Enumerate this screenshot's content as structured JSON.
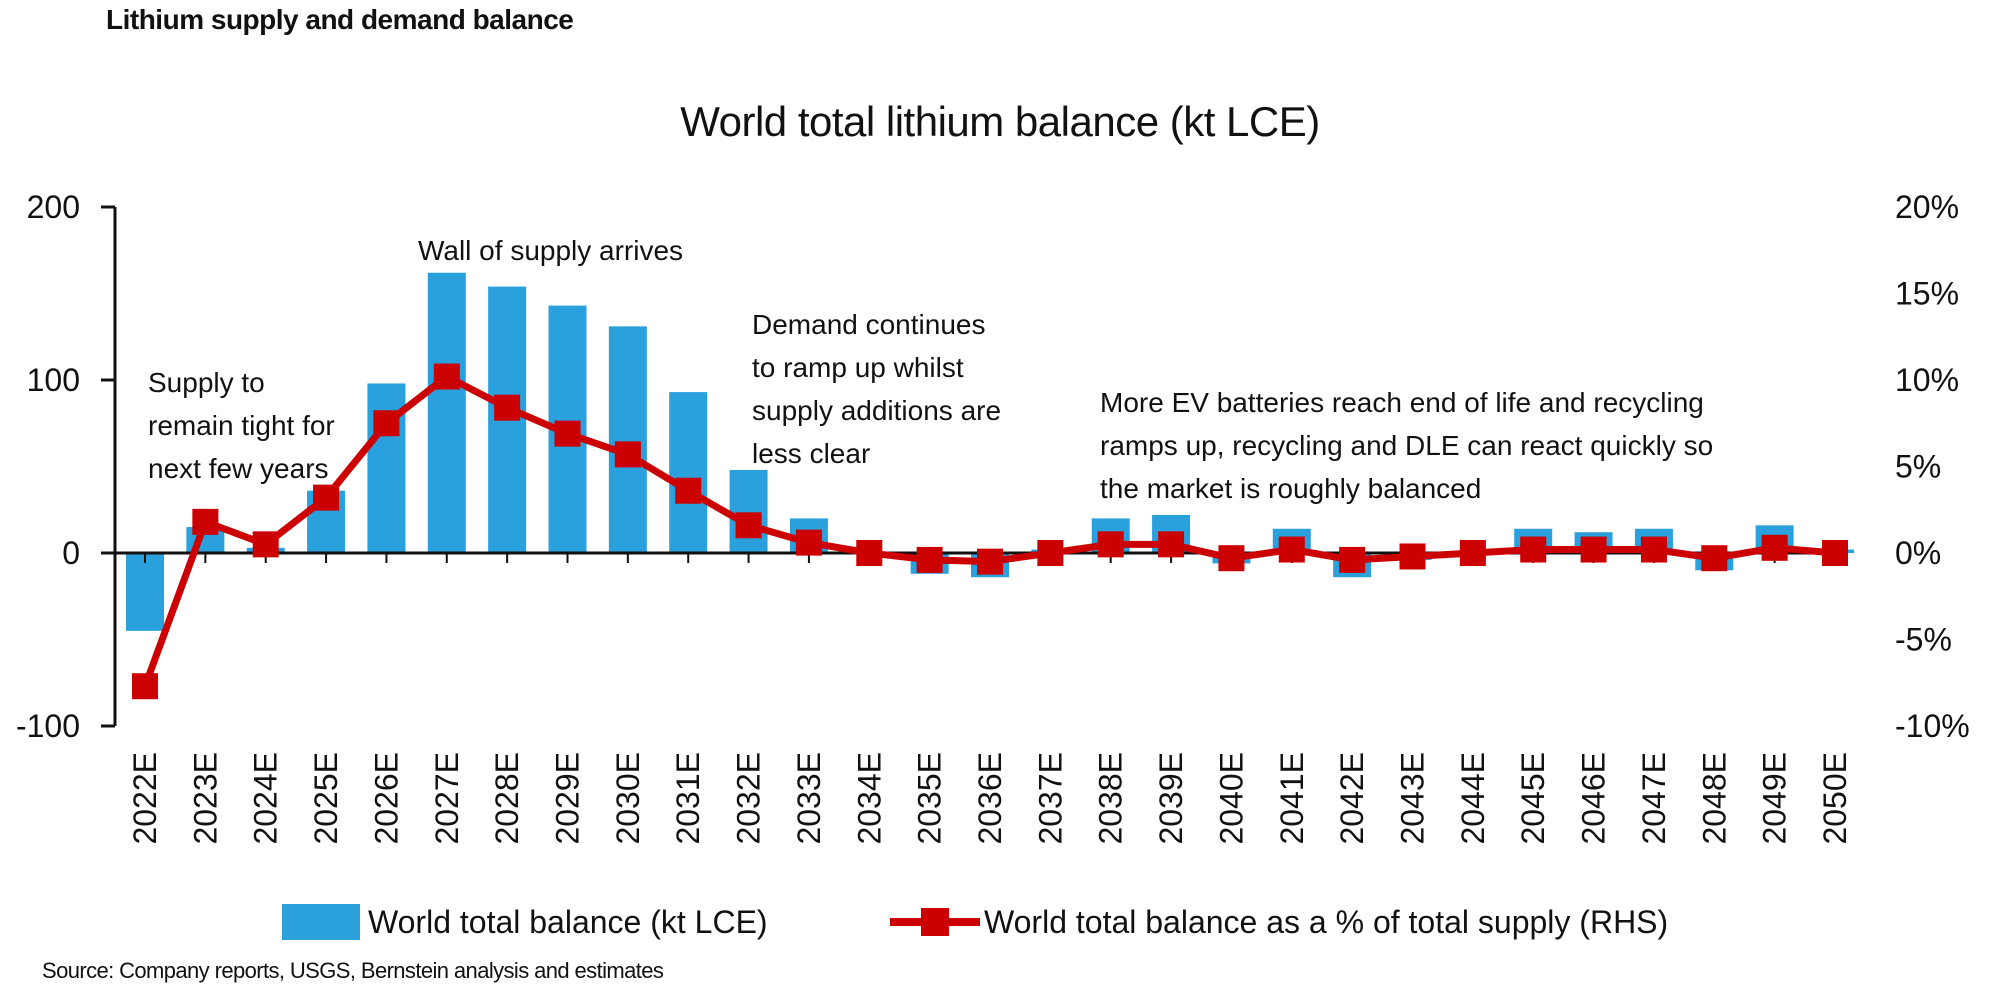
{
  "header": {
    "title": "Lithium supply and demand balance"
  },
  "source": "Source: Company reports, USGS, Bernstein analysis and estimates",
  "chart_data": {
    "type": "bar",
    "title": "World total lithium balance (kt LCE)",
    "categories": [
      "2022E",
      "2023E",
      "2024E",
      "2025E",
      "2026E",
      "2027E",
      "2028E",
      "2029E",
      "2030E",
      "2031E",
      "2032E",
      "2033E",
      "2034E",
      "2035E",
      "2036E",
      "2037E",
      "2038E",
      "2039E",
      "2040E",
      "2041E",
      "2042E",
      "2043E",
      "2044E",
      "2045E",
      "2046E",
      "2047E",
      "2048E",
      "2049E",
      "2050E"
    ],
    "series": [
      {
        "name": "World total balance (kt LCE)",
        "type": "bar",
        "axis": "left",
        "color": "#2aa0dc",
        "values": [
          -45,
          15,
          3,
          36,
          98,
          162,
          154,
          143,
          131,
          93,
          48,
          20,
          0,
          -12,
          -14,
          2,
          20,
          22,
          -6,
          14,
          -14,
          -4,
          0,
          14,
          12,
          14,
          -10,
          16,
          2
        ]
      },
      {
        "name": "World total balance as a % of total supply (RHS)",
        "type": "line",
        "axis": "right",
        "color": "#cc0000",
        "values": [
          -7.7,
          1.8,
          0.5,
          3.2,
          7.5,
          10.2,
          8.4,
          6.9,
          5.7,
          3.6,
          1.6,
          0.6,
          0.0,
          -0.4,
          -0.5,
          0.0,
          0.5,
          0.5,
          -0.3,
          0.2,
          -0.4,
          -0.2,
          0.0,
          0.2,
          0.2,
          0.2,
          -0.3,
          0.3,
          0.0
        ]
      }
    ],
    "y_left": {
      "min": -100,
      "max": 200,
      "ticks": [
        200,
        100,
        0,
        -100
      ],
      "tick_labels": [
        "200",
        "100",
        "0",
        "-100"
      ]
    },
    "y_right": {
      "min": -10,
      "max": 20,
      "ticks": [
        20,
        15,
        10,
        5,
        0,
        -5,
        -10
      ],
      "tick_labels": [
        "20%",
        "15%",
        "10%",
        "5%",
        "0%",
        "-5%",
        "-10%"
      ]
    },
    "legend_position": "bottom",
    "grid": false,
    "annotations": [
      {
        "lines": [
          "Supply to",
          "remain tight for",
          "next few years"
        ]
      },
      {
        "lines": [
          "Wall of supply arrives"
        ]
      },
      {
        "lines": [
          "Demand continues",
          "to ramp up whilst",
          "supply additions are",
          "less clear"
        ]
      },
      {
        "lines": [
          "More EV batteries reach end of life and recycling",
          "ramps up, recycling and DLE can react quickly so",
          "the market is roughly balanced"
        ]
      }
    ]
  }
}
